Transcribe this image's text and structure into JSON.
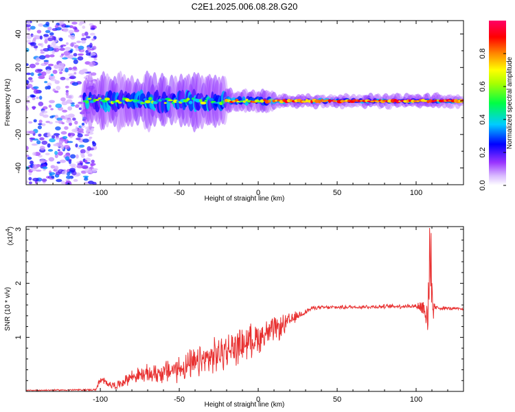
{
  "title": "C2E1.2025.006.08.28.G20",
  "chart_data": [
    {
      "type": "heatmap",
      "xlabel": "Height of straight line (km)",
      "ylabel": "Frequency (Hz)",
      "xlim": [
        -147,
        130
      ],
      "ylim": [
        -50,
        48
      ],
      "xticks": [
        -100,
        -50,
        0,
        50,
        100
      ],
      "yticks": [
        -40,
        -20,
        0,
        20,
        40
      ],
      "colorbar": {
        "label": "Normalized spectral amplitude",
        "range": [
          0,
          1
        ],
        "ticks": [
          "0.0",
          "0.2",
          "0.4",
          "0.6",
          "0.8"
        ],
        "tick_values": [
          0.0,
          0.2,
          0.4,
          0.6,
          0.8
        ],
        "colors": [
          "#ffffff",
          "#cc88ff",
          "#8800ff",
          "#0000ff",
          "#00ffff",
          "#00ff00",
          "#ffff00",
          "#ff8000",
          "#ff0000",
          "#ff0088"
        ]
      },
      "ridge": {
        "description_free": true,
        "segments": [
          {
            "x_start": -110,
            "x_end": -20,
            "frequency": 0,
            "amplitude_range": [
              0.3,
              0.7
            ],
            "spread_hz": 6
          },
          {
            "x_start": -20,
            "x_end": 10,
            "frequency": 0,
            "amplitude_range": [
              0.5,
              0.9
            ],
            "spread_hz": 2.5
          },
          {
            "x_start": 10,
            "x_end": 130,
            "frequency": 0,
            "amplitude_range": [
              0.7,
              0.95
            ],
            "spread_hz": 1.5
          }
        ]
      },
      "noise_region": {
        "x_start": -147,
        "x_end": -103,
        "frequency_range": [
          -50,
          48
        ],
        "amplitude_range": [
          0,
          0.3
        ]
      }
    },
    {
      "type": "line",
      "xlabel": "Height of straight line (km)",
      "ylabel": "SNR (10 * v/v)",
      "scale_note": "(x10",
      "scale_exp": "4",
      "scale_close": ")",
      "xlim": [
        -147,
        130
      ],
      "ylim": [
        0,
        3.05
      ],
      "xticks": [
        -100,
        -50,
        0,
        50,
        100
      ],
      "yticks": [
        1,
        2,
        3
      ],
      "color": "#e83030",
      "profile": [
        {
          "x": -147,
          "y": 0.02,
          "noise": 0.01
        },
        {
          "x": -103,
          "y": 0.03,
          "noise": 0.02
        },
        {
          "x": -100,
          "y": 0.2,
          "noise": 0.1
        },
        {
          "x": -90,
          "y": 0.1,
          "noise": 0.08
        },
        {
          "x": -80,
          "y": 0.28,
          "noise": 0.15
        },
        {
          "x": -60,
          "y": 0.35,
          "noise": 0.25
        },
        {
          "x": -40,
          "y": 0.5,
          "noise": 0.35
        },
        {
          "x": -20,
          "y": 0.75,
          "noise": 0.4
        },
        {
          "x": 0,
          "y": 1.0,
          "noise": 0.35
        },
        {
          "x": 15,
          "y": 1.2,
          "noise": 0.25
        },
        {
          "x": 25,
          "y": 1.4,
          "noise": 0.1
        },
        {
          "x": 35,
          "y": 1.55,
          "noise": 0.04
        },
        {
          "x": 100,
          "y": 1.58,
          "noise": 0.05
        },
        {
          "x": 105,
          "y": 1.55,
          "noise": 0.3
        },
        {
          "x": 108,
          "y": 1.5,
          "noise": 0.9
        },
        {
          "x": 112,
          "y": 1.55,
          "noise": 0.05
        },
        {
          "x": 130,
          "y": 1.52,
          "noise": 0.03
        }
      ]
    }
  ]
}
